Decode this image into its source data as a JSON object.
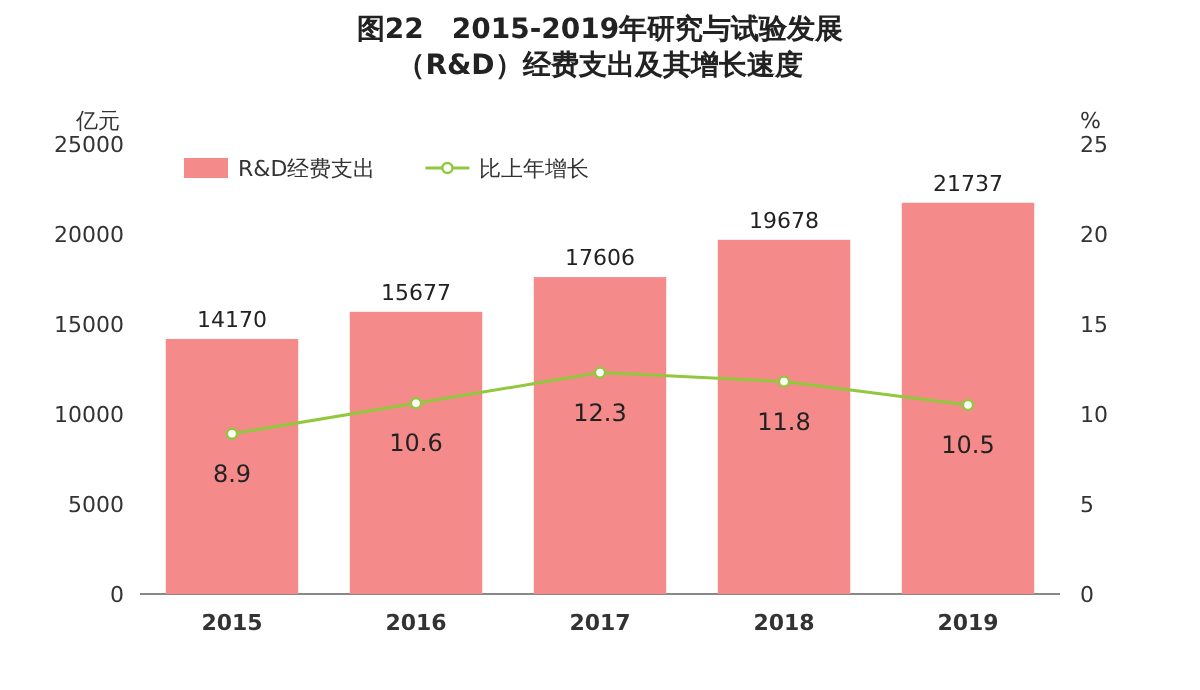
{
  "chart_data": {
    "type": "bar",
    "title": "图22　2015-2019年研究与试验发展（R&D）经费支出及其增长速度",
    "ylabel": "亿元",
    "y2label": "%",
    "categories": [
      "2015",
      "2016",
      "2017",
      "2018",
      "2019"
    ],
    "series": [
      {
        "name": "R&D经费支出",
        "color": "#f58a8a",
        "values": [
          14170,
          15677,
          17606,
          19678,
          21737
        ]
      },
      {
        "name": "比上年增长",
        "type": "line",
        "axis": "y2",
        "color": "#92c83e",
        "values": [
          8.9,
          10.6,
          12.3,
          11.8,
          10.5
        ]
      }
    ],
    "ylim": [
      0,
      25000
    ],
    "yticks": [
      0,
      5000,
      10000,
      15000,
      20000,
      25000
    ],
    "y2lim": [
      0,
      25
    ],
    "y2ticks": [
      0,
      5,
      10,
      15,
      20,
      25
    ],
    "data_labels": true,
    "legend": "top left",
    "marker": "circle"
  }
}
